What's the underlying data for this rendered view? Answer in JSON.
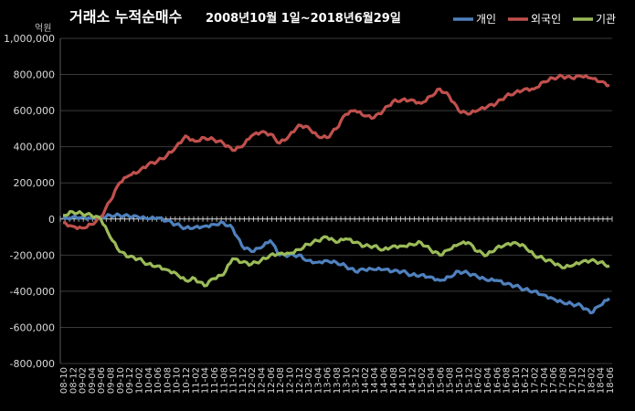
{
  "chart_data": {
    "type": "line",
    "title": "거래소 누적순매수 2008년10월 1일~2018년6월29일",
    "title_parts": [
      "거래소 누적순매수",
      "2008년10월 1일~2018년6월29일"
    ],
    "unit_label": "억원",
    "ylim": [
      -800000,
      1000000
    ],
    "y_ticks": [
      -800000,
      -600000,
      -400000,
      -200000,
      0,
      200000,
      400000,
      600000,
      800000,
      1000000
    ],
    "y_tick_labels": [
      "-800,000",
      "-600,000",
      "-400,000",
      "-200,000",
      "0",
      "200,000",
      "400,000",
      "600,000",
      "800,000",
      "1,000,000"
    ],
    "legend_position": "top-right",
    "grid": true,
    "x": [
      "08-10",
      "08-12",
      "09-02",
      "09-04",
      "09-06",
      "09-08",
      "09-10",
      "09-12",
      "10-02",
      "10-04",
      "10-06",
      "10-08",
      "10-10",
      "10-12",
      "11-02",
      "11-04",
      "11-06",
      "11-08",
      "11-10",
      "11-12",
      "12-02",
      "12-04",
      "12-06",
      "12-08",
      "12-10",
      "12-12",
      "13-02",
      "13-04",
      "13-06",
      "13-08",
      "13-10",
      "13-12",
      "14-02",
      "14-04",
      "14-06",
      "14-08",
      "14-10",
      "14-12",
      "15-02",
      "15-04",
      "15-06",
      "15-08",
      "15-10",
      "15-12",
      "16-02",
      "16-04",
      "16-06",
      "16-08",
      "16-10",
      "16-12",
      "17-02",
      "17-04",
      "17-06",
      "17-08",
      "17-10",
      "17-12",
      "18-02",
      "18-04",
      "18-06"
    ],
    "series": [
      {
        "name": "개인",
        "color": "#4F81BD",
        "values": [
          0,
          10000,
          10000,
          5000,
          10000,
          20000,
          20000,
          15000,
          10000,
          0,
          5000,
          -10000,
          -30000,
          -50000,
          -45000,
          -40000,
          -30000,
          -20000,
          -50000,
          -150000,
          -180000,
          -160000,
          -120000,
          -200000,
          -200000,
          -200000,
          -230000,
          -240000,
          -230000,
          -240000,
          -260000,
          -290000,
          -280000,
          -280000,
          -280000,
          -290000,
          -290000,
          -310000,
          -310000,
          -320000,
          -340000,
          -320000,
          -290000,
          -300000,
          -320000,
          -340000,
          -340000,
          -360000,
          -370000,
          -390000,
          -400000,
          -420000,
          -440000,
          -460000,
          -470000,
          -480000,
          -520000,
          -480000,
          -440000
        ]
      },
      {
        "name": "외국인",
        "color": "#C0504D",
        "values": [
          -20000,
          -40000,
          -50000,
          -30000,
          10000,
          100000,
          200000,
          240000,
          260000,
          300000,
          320000,
          350000,
          400000,
          460000,
          430000,
          450000,
          440000,
          420000,
          380000,
          400000,
          460000,
          480000,
          470000,
          420000,
          460000,
          520000,
          510000,
          460000,
          450000,
          500000,
          580000,
          600000,
          570000,
          560000,
          600000,
          650000,
          660000,
          660000,
          640000,
          680000,
          720000,
          680000,
          600000,
          580000,
          600000,
          620000,
          640000,
          680000,
          700000,
          720000,
          720000,
          760000,
          780000,
          790000,
          780000,
          790000,
          780000,
          760000,
          740000
        ]
      },
      {
        "name": "기관",
        "color": "#9BBB59",
        "values": [
          20000,
          40000,
          30000,
          20000,
          0,
          -100000,
          -180000,
          -210000,
          -220000,
          -250000,
          -260000,
          -280000,
          -300000,
          -340000,
          -330000,
          -370000,
          -330000,
          -310000,
          -220000,
          -240000,
          -250000,
          -230000,
          -200000,
          -190000,
          -190000,
          -170000,
          -140000,
          -120000,
          -100000,
          -130000,
          -110000,
          -130000,
          -150000,
          -150000,
          -170000,
          -150000,
          -150000,
          -140000,
          -130000,
          -170000,
          -200000,
          -170000,
          -140000,
          -130000,
          -180000,
          -200000,
          -160000,
          -140000,
          -130000,
          -150000,
          -200000,
          -220000,
          -240000,
          -270000,
          -260000,
          -240000,
          -230000,
          -240000,
          -260000
        ]
      }
    ]
  }
}
